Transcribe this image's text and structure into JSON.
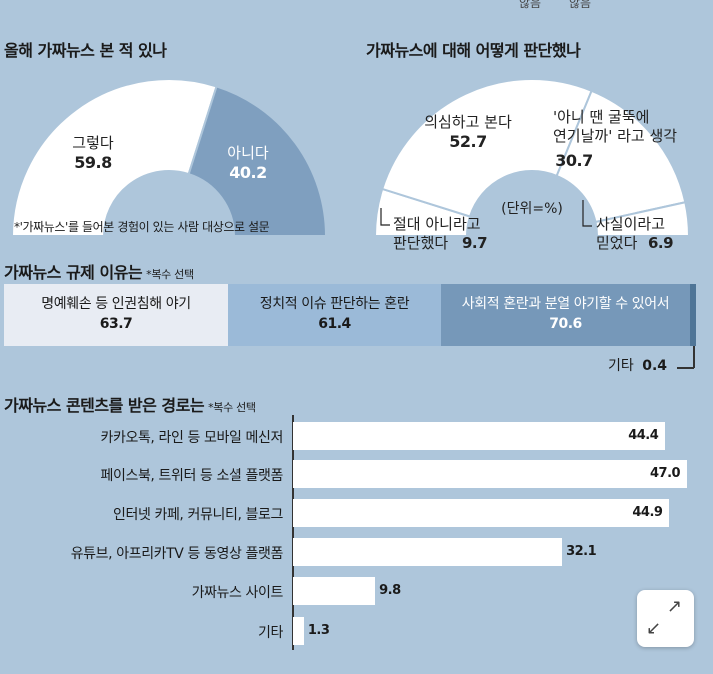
{
  "top_cut": {
    "left": "않음",
    "right": "않음"
  },
  "section1": {
    "title": "올해 가짜뉴스 본 적 있나",
    "note": "*'가짜뉴스'를 들어본 경험이 있는 사람 대상으로 설문"
  },
  "section2": {
    "title": "가짜뉴스에 대해 어떻게 판단했나",
    "unit": "(단위=%)"
  },
  "section3": {
    "title": "가짜뉴스 규제 이유는",
    "subtitle": "*복수 선택"
  },
  "section4": {
    "title": "가짜뉴스 콘텐츠를 받은 경로는",
    "subtitle": "*복수 선택"
  },
  "colors": {
    "background": "#aec6db",
    "white": "#ffffff",
    "steel": "#7f9fbf",
    "light": "#e8ecf3",
    "mid": "#9bbad8",
    "dark": "#7698b9",
    "accent": "#4f7597"
  },
  "chart_data": [
    {
      "type": "pie",
      "shape": "half-donut",
      "title": "올해 가짜뉴스 본 적 있나",
      "categories": [
        "그렇다",
        "아니다"
      ],
      "values": [
        59.8,
        40.2
      ],
      "labels": {
        "yes": "그렇다",
        "yes_value": "59.8",
        "no": "아니다",
        "no_value": "40.2"
      }
    },
    {
      "type": "pie",
      "shape": "half-donut",
      "title": "가짜뉴스에 대해 어떻게 판단했나",
      "categories": [
        "절대 아니라고 판단했다",
        "의심하고 본다",
        "'아니 땐 굴뚝에 연기날까' 라고 생각",
        "사실이라고 믿었다"
      ],
      "values": [
        9.7,
        52.7,
        30.7,
        6.9
      ],
      "labels": {
        "doubt_label": "의심하고 본다",
        "doubt_value": "52.7",
        "smoke_line1": "'아니 땐 굴뚝에",
        "smoke_line2": "연기날까' 라고 생각",
        "smoke_value": "30.7",
        "never_line1": "절대 아니라고",
        "never_line2": "판단했다",
        "never_value": "9.7",
        "believe_line1": "사실이라고",
        "believe_line2": "믿었다",
        "believe_value": "6.9"
      }
    },
    {
      "type": "bar",
      "orientation": "stacked-horizontal",
      "title": "가짜뉴스 규제 이유는",
      "categories": [
        "명예훼손 등 인권침해 야기",
        "정치적 이슈 판단하는 혼란",
        "사회적 혼란과 분열 야기할 수 있어서",
        "기타"
      ],
      "values": [
        63.7,
        61.4,
        70.6,
        0.4
      ],
      "display_values": [
        "63.7",
        "61.4",
        "70.6",
        "0.4"
      ]
    },
    {
      "type": "bar",
      "orientation": "horizontal",
      "title": "가짜뉴스 콘텐츠를 받은 경로는",
      "categories": [
        "카카오톡, 라인 등 모바일 메신저",
        "페이스북, 트위터 등 소셜 플랫폼",
        "인터넷 카페, 커뮤니티, 블로그",
        "유튜브, 아프리카TV 등 동영상 플랫폼",
        "가짜뉴스 사이트",
        "기타"
      ],
      "values": [
        44.4,
        47.0,
        44.9,
        32.1,
        9.8,
        1.3
      ],
      "display_values": [
        "44.4",
        "47.0",
        "44.9",
        "32.1",
        "9.8",
        "1.3"
      ],
      "xlim": [
        0,
        47.0
      ]
    }
  ],
  "expand": {
    "arrow_up": "↗",
    "arrow_down": "↙"
  }
}
